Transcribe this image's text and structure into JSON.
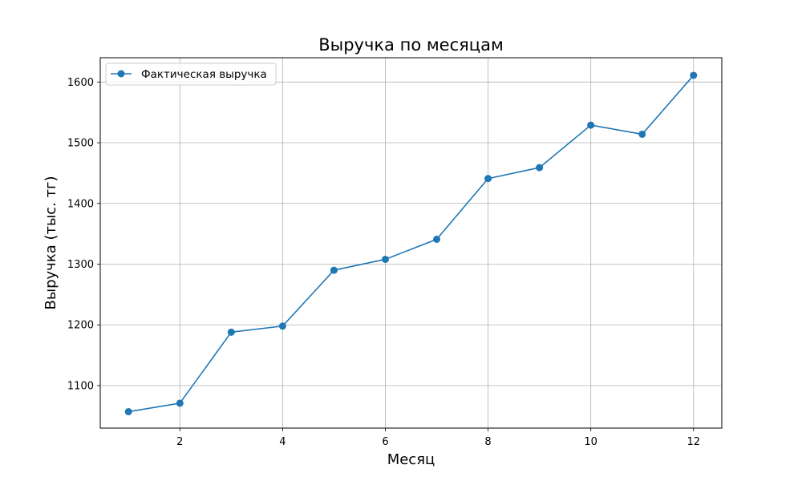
{
  "chart_data": {
    "type": "line",
    "title": "Выручка по месяцам",
    "xlabel": "Месяц",
    "ylabel": "Выручка (тыс. тг)",
    "xlim": [
      0.45,
      12.55
    ],
    "ylim": [
      1030,
      1640
    ],
    "xticks": [
      2,
      4,
      6,
      8,
      10,
      12
    ],
    "yticks": [
      1100,
      1200,
      1300,
      1400,
      1500,
      1600
    ],
    "grid": true,
    "legend_position": "top-left",
    "series": [
      {
        "name": "Фактическая выручка",
        "color": "#1f77b4",
        "marker": "circle",
        "x": [
          1,
          2,
          3,
          4,
          5,
          6,
          7,
          8,
          9,
          10,
          11,
          12
        ],
        "y": [
          1057,
          1071,
          1188,
          1198,
          1290,
          1308,
          1341,
          1441,
          1459,
          1529,
          1514,
          1611
        ]
      }
    ]
  }
}
